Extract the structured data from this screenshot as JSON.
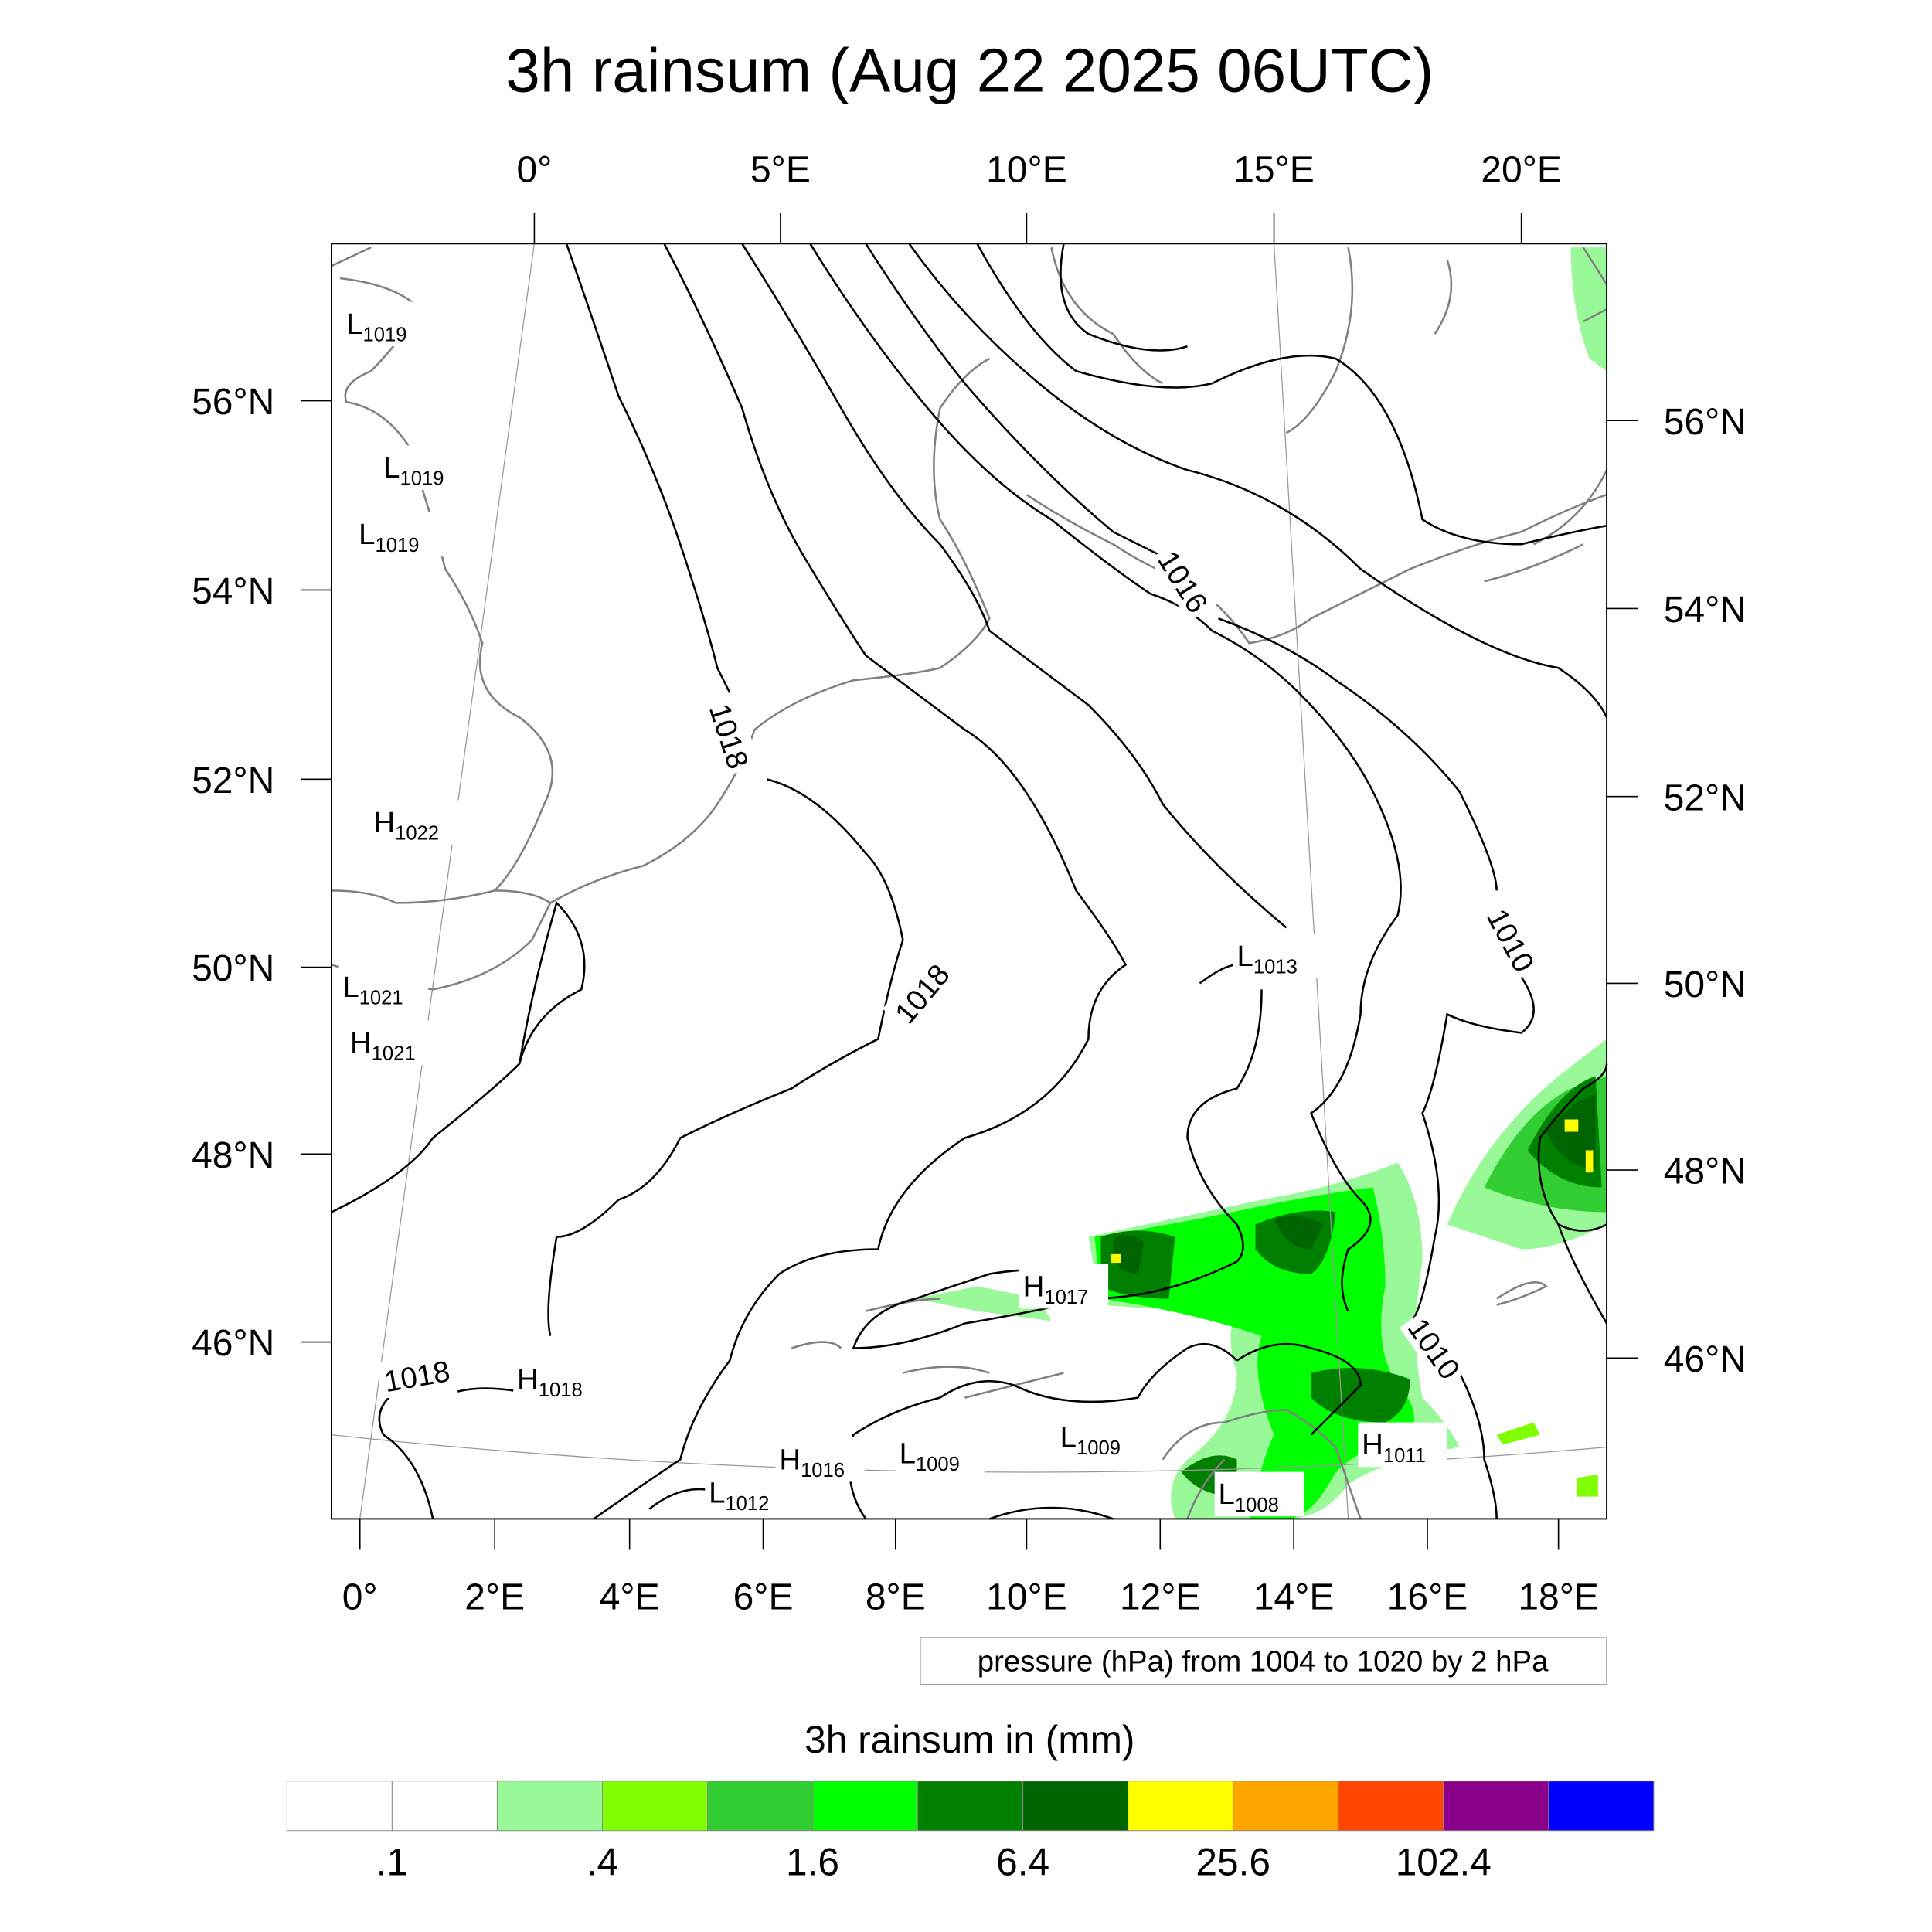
{
  "title": "3h rainsum (Aug 22 2025 06UTC)",
  "axes": {
    "top_lon_labels": [
      "0°",
      "5°E",
      "10°E",
      "15°E",
      "20°E"
    ],
    "bottom_lon_labels": [
      "0°",
      "2°E",
      "4°E",
      "6°E",
      "8°E",
      "10°E",
      "12°E",
      "14°E",
      "16°E",
      "18°E"
    ],
    "left_lat_labels": [
      "56°N",
      "54°N",
      "52°N",
      "50°N",
      "48°N",
      "46°N"
    ],
    "right_lat_labels": [
      "56°N",
      "54°N",
      "52°N",
      "50°N",
      "48°N",
      "46°N"
    ]
  },
  "pressure_labels": [
    {
      "type": "L",
      "value": "1019"
    },
    {
      "type": "L",
      "value": "1019"
    },
    {
      "type": "L",
      "value": "1019"
    },
    {
      "type": "H",
      "value": "1022"
    },
    {
      "type": "L",
      "value": "1021"
    },
    {
      "type": "H",
      "value": "1021"
    },
    {
      "type": "L",
      "value": "1013"
    },
    {
      "type": "H",
      "value": "1017"
    },
    {
      "type": "H",
      "value": "1018"
    },
    {
      "type": "H",
      "value": "1016"
    },
    {
      "type": "L",
      "value": "1009"
    },
    {
      "type": "L",
      "value": "1009"
    },
    {
      "type": "L",
      "value": "1012"
    },
    {
      "type": "L",
      "value": "1008"
    },
    {
      "type": "H",
      "value": "1011"
    }
  ],
  "contour_line_labels": [
    "1018",
    "1018",
    "1016",
    "1010",
    "1010",
    "1018"
  ],
  "contour_info": "pressure (hPa) from 1004 to 1020 by 2 hPa",
  "colorbar": {
    "title": "3h rainsum in (mm)",
    "colors": [
      "#ffffff",
      "#ffffff",
      "#99f999",
      "#80ff00",
      "#32cd32",
      "#00ff00",
      "#008000",
      "#006400",
      "#ffff00",
      "#ffa500",
      "#ff4500",
      "#8b008b",
      "#0000ff"
    ],
    "labels": [
      ".1",
      ".4",
      "1.6",
      "6.4",
      "25.6",
      "102.4"
    ]
  }
}
